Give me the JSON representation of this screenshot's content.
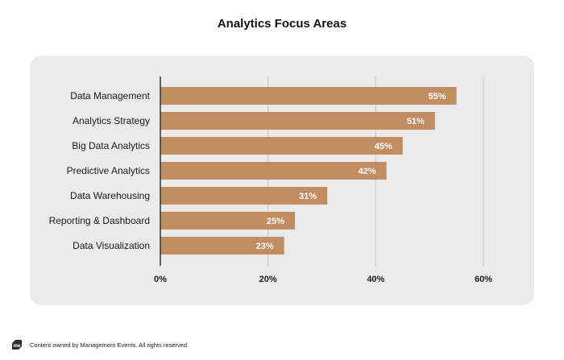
{
  "chart_data": {
    "type": "bar",
    "orientation": "horizontal",
    "title": "Analytics Focus Areas",
    "xlabel": "",
    "ylabel": "",
    "categories": [
      "Data Management",
      "Analytics Strategy",
      "Big Data Analytics",
      "Predictive Analytics",
      "Data Warehousing",
      "Reporting & Dashboard",
      "Data Visualization"
    ],
    "values": [
      55,
      51,
      45,
      42,
      31,
      25,
      23
    ],
    "value_labels": [
      "55%",
      "51%",
      "45%",
      "42%",
      "31%",
      "25%",
      "23%"
    ],
    "xlim": [
      0,
      60
    ],
    "xticks": [
      0,
      20,
      40,
      60
    ],
    "xtick_labels": [
      "0%",
      "20%",
      "40%",
      "60%"
    ],
    "grid": true,
    "legend": "none",
    "bar_color": "#c28d60",
    "panel_color": "#ebebeb"
  },
  "footer": {
    "logo_icon": "management-events-logo-icon",
    "text": "Content owned by Management Events. All rights reserved."
  }
}
